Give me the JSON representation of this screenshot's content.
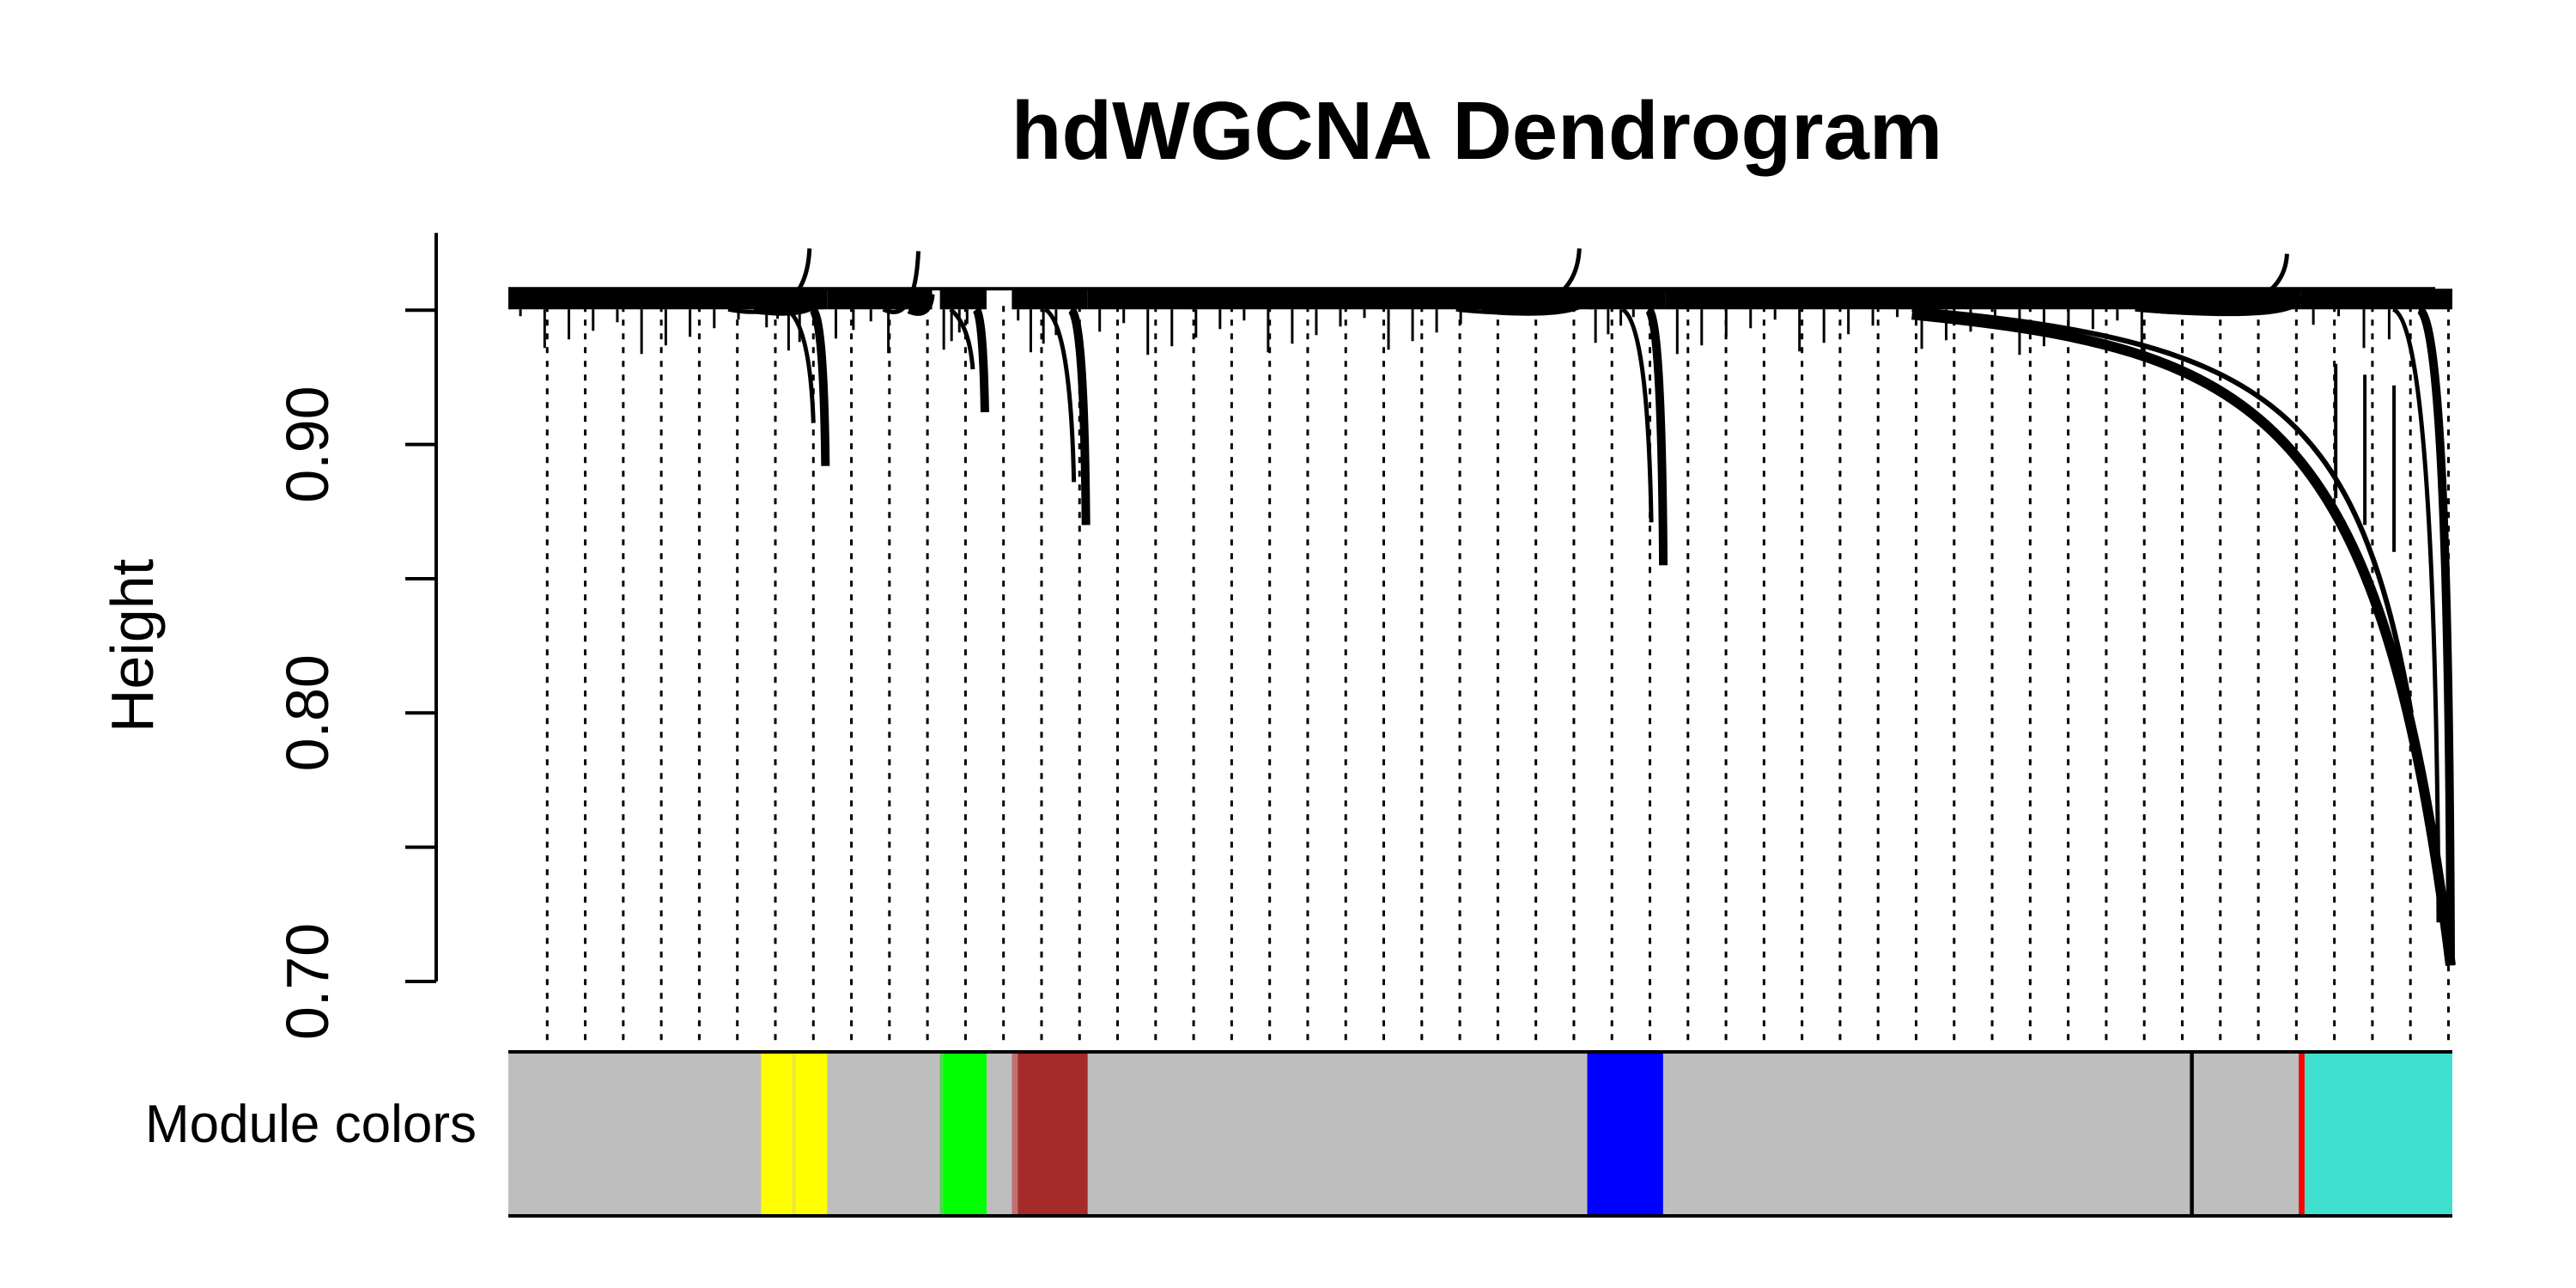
{
  "chart_data": {
    "type": "dendrogram",
    "title": "hdWGCNA Dendrogram",
    "ylabel": "Height",
    "xlabel": "",
    "ylim": [
      0.7,
      0.96
    ],
    "yticks": [
      0.7,
      0.75,
      0.8,
      0.85,
      0.9,
      0.95
    ],
    "ytick_labels": [
      "0.70",
      "",
      "0.80",
      "",
      "0.90",
      ""
    ],
    "top_height": 0.958,
    "tracks": [
      {
        "label": "Module colors"
      }
    ],
    "clusters": [
      {
        "module": "grey",
        "start": 0.0,
        "end": 0.162,
        "merge": 0.957
      },
      {
        "module": "yellow",
        "start": 0.13,
        "end": 0.164,
        "merge": 0.892
      },
      {
        "module": "grey",
        "start": 0.164,
        "end": 0.218,
        "merge": 0.956
      },
      {
        "module": "green",
        "start": 0.222,
        "end": 0.246,
        "merge": 0.912
      },
      {
        "module": "brown",
        "start": 0.259,
        "end": 0.298,
        "merge": 0.87
      },
      {
        "module": "grey",
        "start": 0.298,
        "end": 0.558,
        "merge": 0.957
      },
      {
        "module": "blue",
        "start": 0.556,
        "end": 0.595,
        "merge": 0.855
      },
      {
        "module": "grey",
        "start": 0.595,
        "end": 0.922,
        "merge": 0.955
      },
      {
        "module": "turquoise",
        "start": 0.922,
        "end": 1.0,
        "merge": 0.706
      }
    ],
    "module_bands": [
      {
        "module": "grey",
        "color": "#BEBEBE",
        "start": 0.0,
        "end": 1.0
      },
      {
        "module": "yellow",
        "color": "#FFFF00",
        "start": 0.13,
        "end": 0.164
      },
      {
        "module": "green",
        "color": "#00FF00",
        "start": 0.222,
        "end": 0.246
      },
      {
        "module": "brown",
        "color": "#A52A2A",
        "start": 0.262,
        "end": 0.298
      },
      {
        "module": "blue",
        "color": "#0000FF",
        "start": 0.555,
        "end": 0.594
      },
      {
        "module": "black",
        "color": "#000000",
        "start": 0.865,
        "end": 0.867
      },
      {
        "module": "red",
        "color": "#FF0000",
        "start": 0.921,
        "end": 0.924
      },
      {
        "module": "turquoise",
        "color": "#40E0D0",
        "start": 0.924,
        "end": 1.0
      }
    ],
    "module_band_opacity": [
      {
        "module": "brown",
        "color": "#C07070",
        "start": 0.259,
        "end": 0.262
      },
      {
        "module": "green",
        "color": "#44DD44",
        "start": 0.222,
        "end": 0.224
      },
      {
        "module": "yellow",
        "color": "#E8E840",
        "start": 0.146,
        "end": 0.148
      }
    ]
  }
}
